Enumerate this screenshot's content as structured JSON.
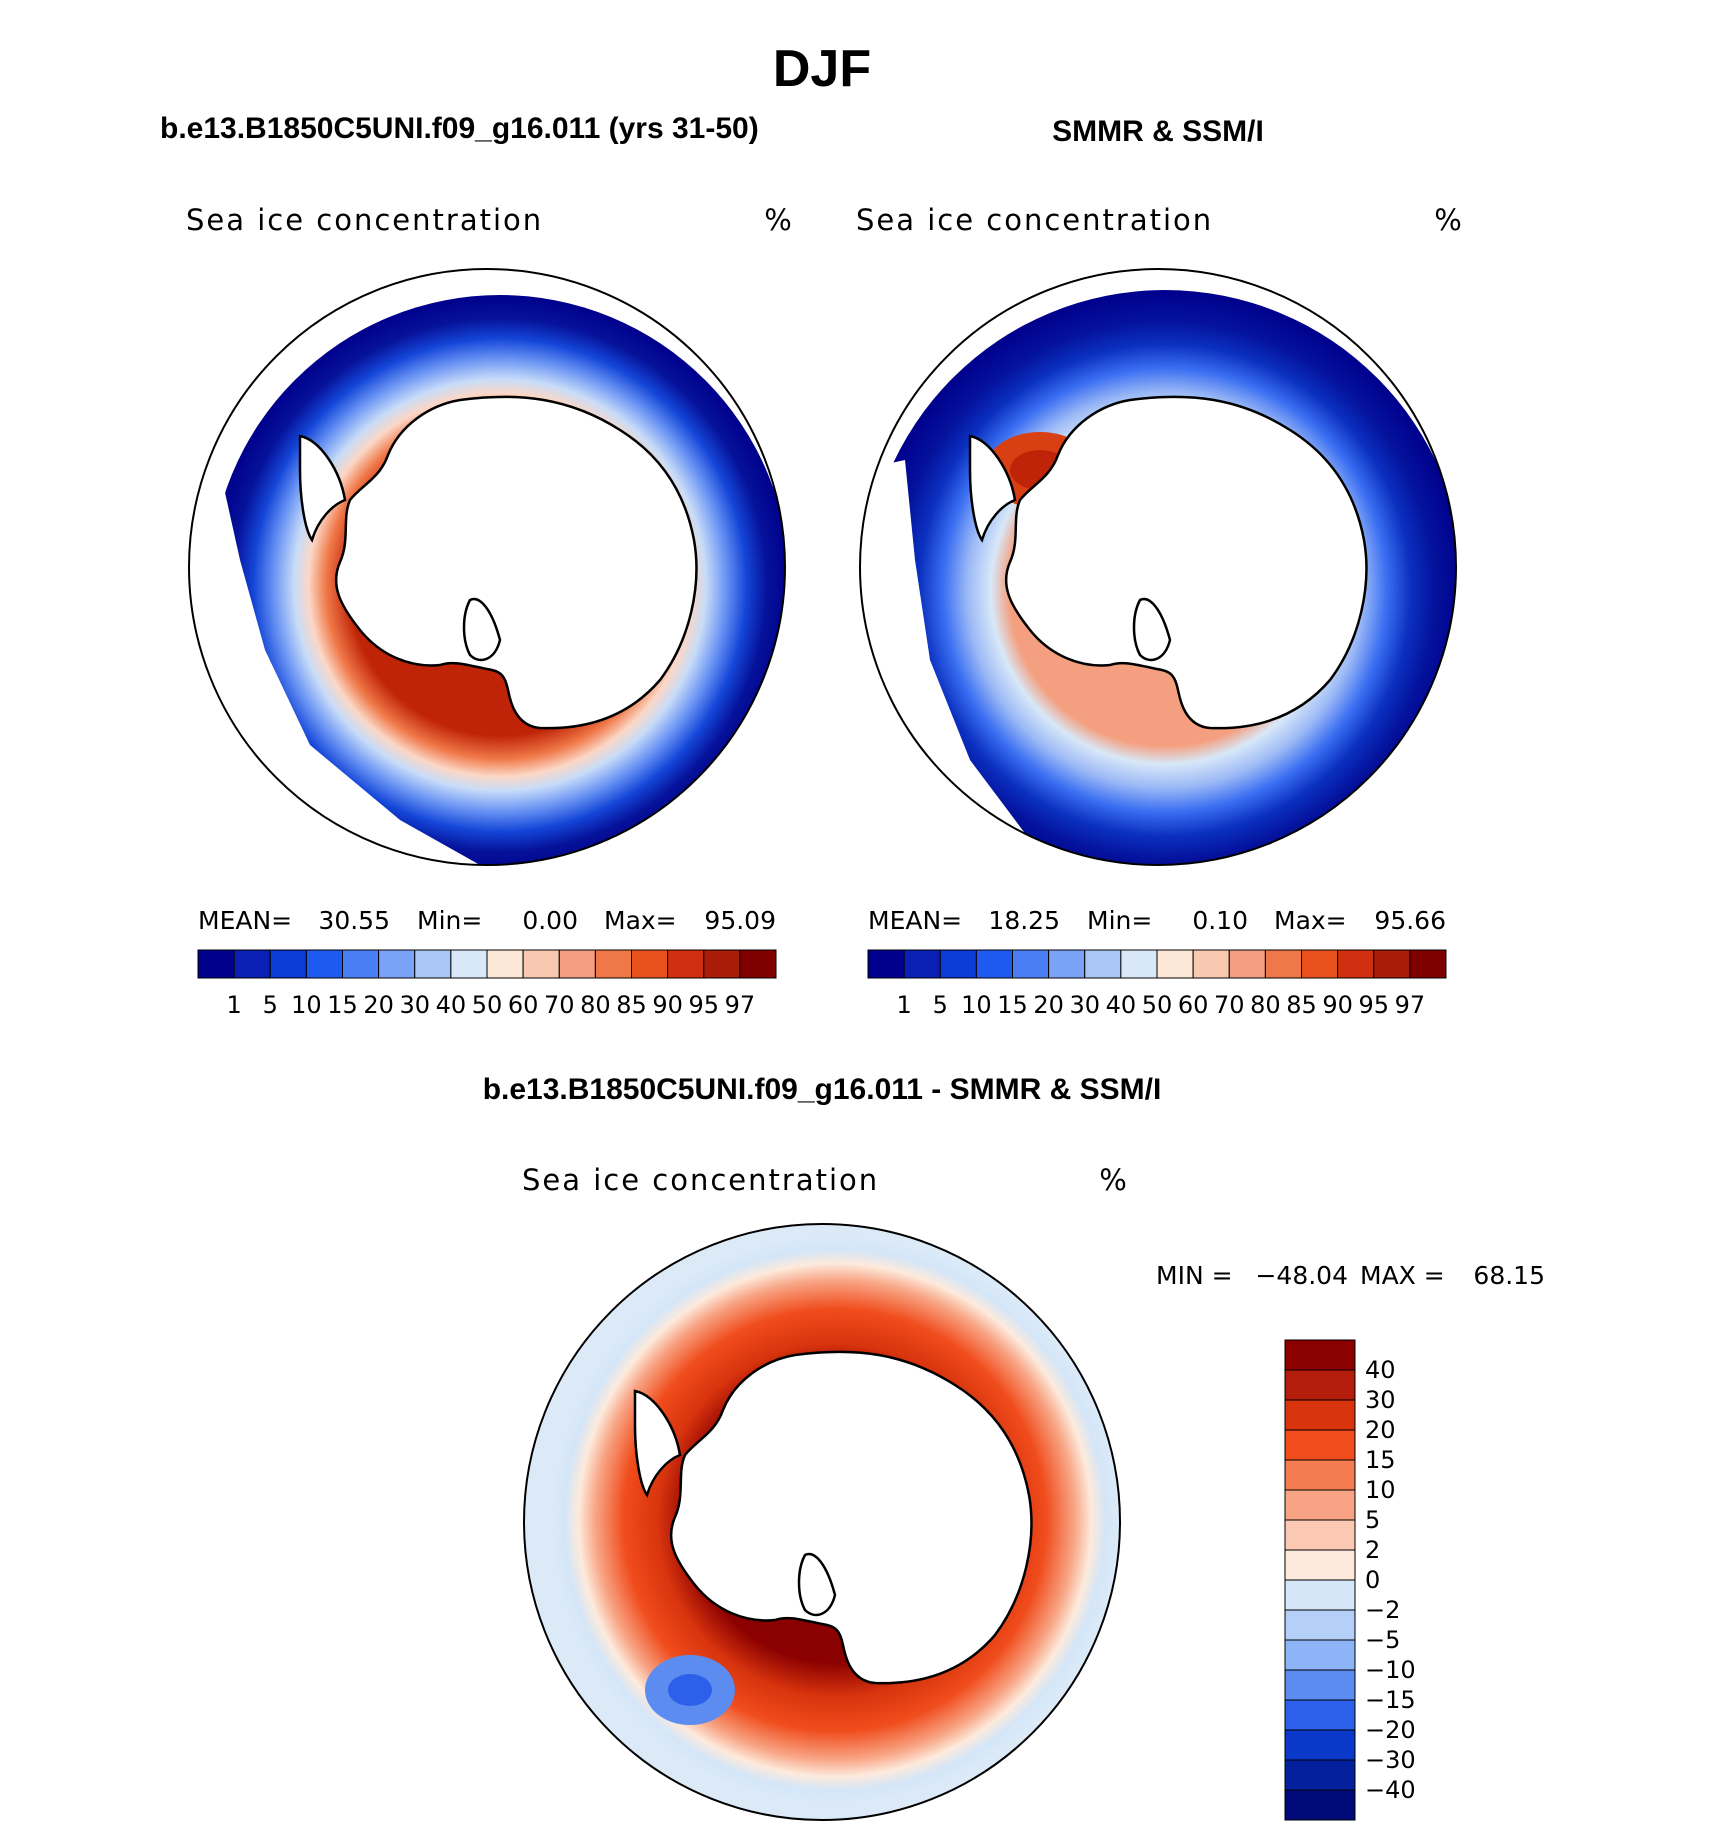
{
  "title": "DJF",
  "panels": [
    {
      "subtitle": "b.e13.B1850C5UNI.f09_g16.011 (yrs 31-50)",
      "field_label": "Sea ice concentration",
      "units": "%",
      "stats": {
        "mean_label": "MEAN=",
        "mean": "30.55",
        "min_label": "Min=",
        "min": "0.00",
        "max_label": "Max=",
        "max": "95.09"
      }
    },
    {
      "subtitle": "SMMR & SSM/I",
      "field_label": "Sea ice concentration",
      "units": "%",
      "stats": {
        "mean_label": "MEAN=",
        "mean": "18.25",
        "min_label": "Min=",
        "min": "0.10",
        "max_label": "Max=",
        "max": "95.66"
      }
    }
  ],
  "concentration_scale": {
    "levels": [
      "1",
      "5",
      "10",
      "15",
      "20",
      "30",
      "40",
      "50",
      "60",
      "70",
      "80",
      "85",
      "90",
      "95",
      "97"
    ],
    "colors": [
      "#00008c",
      "#0a20b4",
      "#0b3dd6",
      "#1e5aef",
      "#4a7ef4",
      "#7aa2f6",
      "#aac6f8",
      "#d8e8f8",
      "#fde8d8",
      "#f8c8b0",
      "#f4a080",
      "#f07848",
      "#e8501c",
      "#d03010",
      "#a81c08",
      "#800000"
    ]
  },
  "difference_panel": {
    "subtitle": "b.e13.B1850C5UNI.f09_g16.011 - SMMR & SSM/I",
    "field_label": "Sea ice concentration",
    "units": "%",
    "stats": {
      "min_label": "MIN =",
      "min": "−48.04",
      "max_label": "MAX =",
      "max": "68.15"
    },
    "scale": {
      "levels": [
        "40",
        "30",
        "20",
        "15",
        "10",
        "5",
        "2",
        "0",
        "−2",
        "−5",
        "−10",
        "−15",
        "−20",
        "−30",
        "−40"
      ],
      "colors": [
        "#8b0000",
        "#b41c0c",
        "#d8340e",
        "#f04c1c",
        "#f47c50",
        "#f8a484",
        "#fccab4",
        "#fdeadc",
        "#d4e6f8",
        "#b4d0f8",
        "#8cb4f6",
        "#5c8cf0",
        "#2c60ea",
        "#0a38c8",
        "#04209c",
        "#000a78"
      ]
    }
  }
}
